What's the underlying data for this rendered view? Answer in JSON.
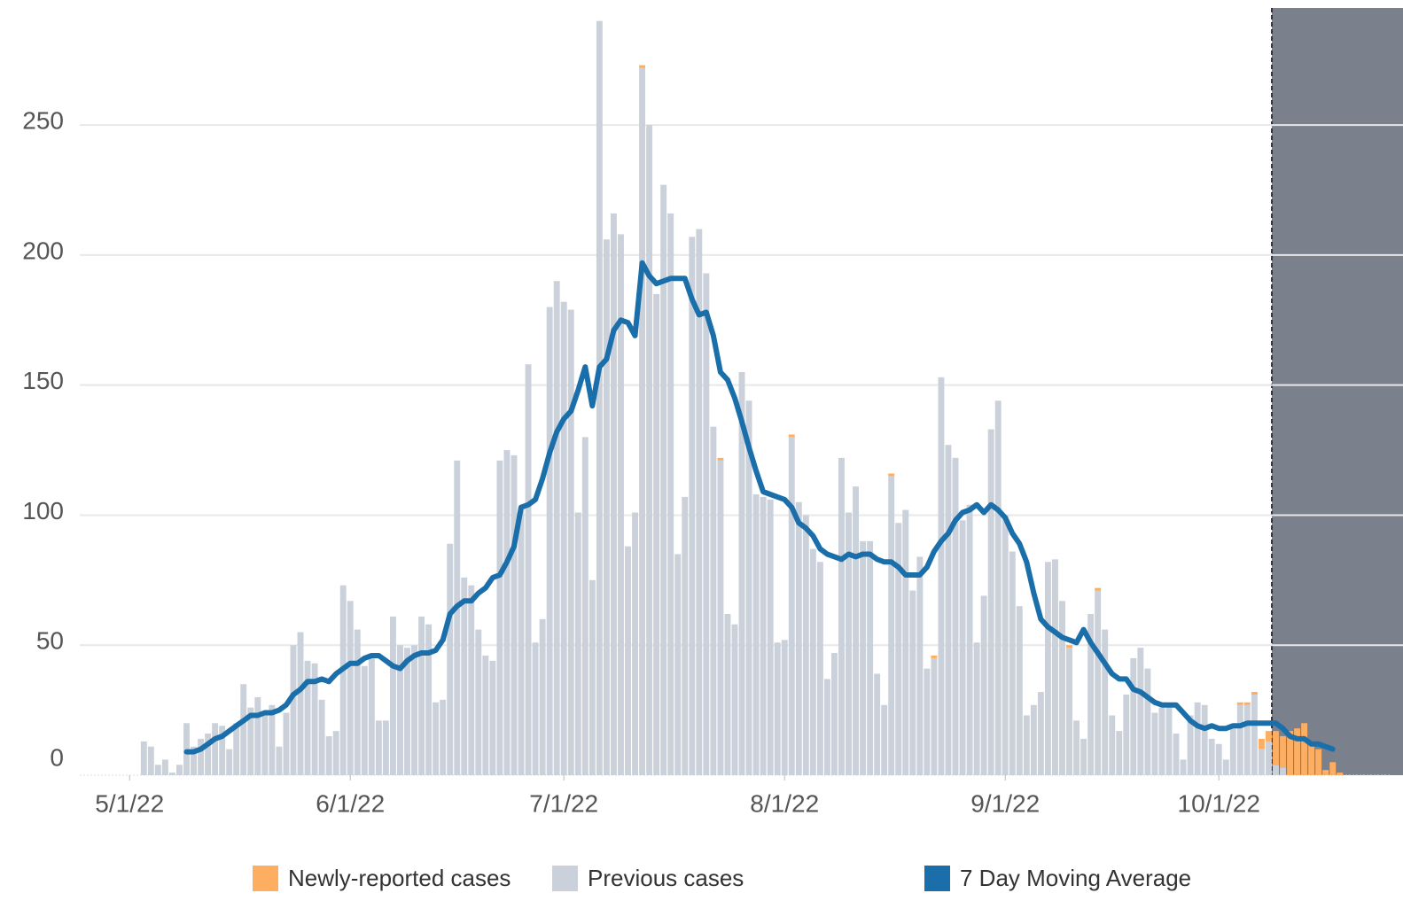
{
  "chart_data": {
    "type": "bar",
    "stacked": true,
    "x": [
      "5/3/22",
      "5/4/22",
      "5/5/22",
      "5/6/22",
      "5/7/22",
      "5/8/22",
      "5/9/22",
      "5/10/22",
      "5/11/22",
      "5/12/22",
      "5/13/22",
      "5/14/22",
      "5/15/22",
      "5/16/22",
      "5/17/22",
      "5/18/22",
      "5/19/22",
      "5/20/22",
      "5/21/22",
      "5/22/22",
      "5/23/22",
      "5/24/22",
      "5/25/22",
      "5/26/22",
      "5/27/22",
      "5/28/22",
      "5/29/22",
      "5/30/22",
      "5/31/22",
      "6/1/22",
      "6/2/22",
      "6/3/22",
      "6/4/22",
      "6/5/22",
      "6/6/22",
      "6/7/22",
      "6/8/22",
      "6/9/22",
      "6/10/22",
      "6/11/22",
      "6/12/22",
      "6/13/22",
      "6/14/22",
      "6/15/22",
      "6/16/22",
      "6/17/22",
      "6/18/22",
      "6/19/22",
      "6/20/22",
      "6/21/22",
      "6/22/22",
      "6/23/22",
      "6/24/22",
      "6/25/22",
      "6/26/22",
      "6/27/22",
      "6/28/22",
      "6/29/22",
      "6/30/22",
      "7/1/22",
      "7/2/22",
      "7/3/22",
      "7/4/22",
      "7/5/22",
      "7/6/22",
      "7/7/22",
      "7/8/22",
      "7/9/22",
      "7/10/22",
      "7/11/22",
      "7/12/22",
      "7/13/22",
      "7/14/22",
      "7/15/22",
      "7/16/22",
      "7/17/22",
      "7/18/22",
      "7/19/22",
      "7/20/22",
      "7/21/22",
      "7/22/22",
      "7/23/22",
      "7/24/22",
      "7/25/22",
      "7/26/22",
      "7/27/22",
      "7/28/22",
      "7/29/22",
      "7/30/22",
      "7/31/22",
      "8/1/22",
      "8/2/22",
      "8/3/22",
      "8/4/22",
      "8/5/22",
      "8/6/22",
      "8/7/22",
      "8/8/22",
      "8/9/22",
      "8/10/22",
      "8/11/22",
      "8/12/22",
      "8/13/22",
      "8/14/22",
      "8/15/22",
      "8/16/22",
      "8/17/22",
      "8/18/22",
      "8/19/22",
      "8/20/22",
      "8/21/22",
      "8/22/22",
      "8/23/22",
      "8/24/22",
      "8/25/22",
      "8/26/22",
      "8/27/22",
      "8/28/22",
      "8/29/22",
      "8/30/22",
      "8/31/22",
      "9/1/22",
      "9/2/22",
      "9/3/22",
      "9/4/22",
      "9/5/22",
      "9/6/22",
      "9/7/22",
      "9/8/22",
      "9/9/22",
      "9/10/22",
      "9/11/22",
      "9/12/22",
      "9/13/22",
      "9/14/22",
      "9/15/22",
      "9/16/22",
      "9/17/22",
      "9/18/22",
      "9/19/22",
      "9/20/22",
      "9/21/22",
      "9/22/22",
      "9/23/22",
      "9/24/22",
      "9/25/22",
      "9/26/22",
      "9/27/22",
      "9/28/22",
      "9/29/22",
      "9/30/22",
      "10/1/22",
      "10/2/22",
      "10/3/22",
      "10/4/22",
      "10/5/22",
      "10/6/22",
      "10/7/22",
      "10/8/22",
      "10/9/22",
      "10/10/22",
      "10/11/22",
      "10/12/22",
      "10/13/22",
      "10/14/22",
      "10/15/22",
      "10/16/22",
      "10/17/22",
      "10/18/22"
    ],
    "series": [
      {
        "name": "Newly-reported cases",
        "color": "#fdae61",
        "values": [
          0,
          0,
          0,
          0,
          0,
          0,
          0,
          0,
          0,
          0,
          0,
          0,
          0,
          0,
          0,
          0,
          0,
          0,
          0,
          0,
          0,
          0,
          0,
          0,
          0,
          0,
          0,
          0,
          0,
          0,
          0,
          0,
          0,
          0,
          0,
          0,
          0,
          0,
          0,
          0,
          0,
          0,
          0,
          0,
          0,
          0,
          0,
          0,
          0,
          0,
          0,
          0,
          0,
          0,
          0,
          0,
          0,
          0,
          0,
          0,
          0,
          0,
          0,
          0,
          0,
          0,
          0,
          0,
          0,
          0,
          1,
          0,
          0,
          0,
          0,
          0,
          0,
          0,
          0,
          0,
          0,
          1,
          0,
          0,
          0,
          0,
          0,
          0,
          0,
          0,
          0,
          1,
          0,
          0,
          0,
          0,
          0,
          0,
          0,
          0,
          0,
          0,
          0,
          0,
          0,
          1,
          0,
          0,
          0,
          0,
          0,
          1,
          0,
          0,
          0,
          0,
          0,
          0,
          0,
          0,
          0,
          0,
          0,
          0,
          0,
          0,
          0,
          0,
          0,
          0,
          1,
          0,
          0,
          0,
          1,
          0,
          0,
          0,
          0,
          0,
          0,
          0,
          0,
          0,
          0,
          0,
          0,
          0,
          0,
          0,
          0,
          0,
          0,
          0,
          1,
          1,
          1,
          4,
          4,
          13,
          12,
          17,
          18,
          20,
          12,
          10,
          2,
          5,
          1
        ]
      },
      {
        "name": "Previous cases",
        "color": "#cbd1da",
        "values": [
          13,
          11,
          4,
          6,
          1,
          4,
          20,
          11,
          14,
          16,
          20,
          19,
          10,
          20,
          35,
          26,
          30,
          23,
          27,
          11,
          24,
          50,
          55,
          44,
          43,
          29,
          15,
          17,
          73,
          67,
          56,
          42,
          45,
          21,
          21,
          61,
          50,
          49,
          50,
          61,
          58,
          28,
          29,
          89,
          121,
          76,
          73,
          56,
          46,
          44,
          121,
          125,
          123,
          103,
          158,
          51,
          60,
          180,
          190,
          182,
          179,
          101,
          130,
          75,
          290,
          206,
          216,
          208,
          88,
          101,
          272,
          250,
          185,
          227,
          216,
          85,
          107,
          207,
          210,
          193,
          134,
          121,
          62,
          58,
          155,
          144,
          108,
          107,
          106,
          51,
          52,
          130,
          105,
          100,
          87,
          82,
          37,
          47,
          122,
          101,
          111,
          90,
          90,
          39,
          27,
          115,
          97,
          102,
          71,
          84,
          41,
          45,
          153,
          127,
          122,
          98,
          104,
          51,
          69,
          133,
          144,
          100,
          86,
          65,
          23,
          27,
          32,
          82,
          83,
          67,
          49,
          21,
          14,
          62,
          71,
          56,
          23,
          17,
          31,
          45,
          49,
          41,
          24,
          26,
          27,
          16,
          6,
          23,
          28,
          27,
          14,
          12,
          6,
          18,
          27,
          27,
          31,
          10,
          13,
          4,
          3,
          0,
          0,
          0,
          0,
          0,
          0,
          0,
          0
        ]
      },
      {
        "name": "7 Day Moving Average",
        "color": "#1a6faa",
        "type": "line",
        "values": [
          null,
          null,
          null,
          null,
          null,
          null,
          9,
          9,
          10,
          12,
          14,
          15,
          17,
          19,
          21,
          23,
          23,
          24,
          24,
          25,
          27,
          31,
          33,
          36,
          36,
          37,
          36,
          39,
          41,
          43,
          43,
          45,
          46,
          46,
          44,
          42,
          41,
          44,
          46,
          47,
          47,
          48,
          52,
          62,
          65,
          67,
          67,
          70,
          72,
          76,
          77,
          82,
          88,
          103,
          104,
          106,
          114,
          124,
          132,
          137,
          140,
          148,
          157,
          142,
          157,
          160,
          171,
          175,
          174,
          169,
          197,
          192,
          189,
          190,
          191,
          191,
          191,
          183,
          177,
          178,
          169,
          155,
          152,
          145,
          136,
          126,
          117,
          109,
          108,
          107,
          106,
          103,
          97,
          95,
          92,
          87,
          85,
          84,
          83,
          85,
          84,
          85,
          85,
          83,
          82,
          82,
          80,
          77,
          77,
          77,
          80,
          86,
          90,
          93,
          98,
          101,
          102,
          104,
          101,
          104,
          102,
          99,
          93,
          89,
          82,
          70,
          60,
          57,
          55,
          53,
          52,
          51,
          56,
          51,
          47,
          43,
          39,
          37,
          37,
          33,
          32,
          30,
          28,
          27,
          27,
          27,
          24,
          21,
          19,
          18,
          19,
          18,
          18,
          19,
          19,
          20,
          20,
          20,
          20,
          20,
          18,
          15,
          14,
          14,
          12,
          12,
          11,
          10,
          null
        ]
      }
    ],
    "xlim": [
      "4/24/22",
      "10/25/22"
    ],
    "xticks": [
      "5/1/22",
      "6/1/22",
      "7/1/22",
      "8/1/22",
      "9/1/22",
      "10/1/22"
    ],
    "ylim": [
      0,
      295
    ],
    "yticks": [
      0,
      50,
      100,
      150,
      200,
      250
    ],
    "grid": true,
    "shade_start": "10/9/22",
    "shade_color": "#7b818c",
    "legend": "bottom"
  }
}
